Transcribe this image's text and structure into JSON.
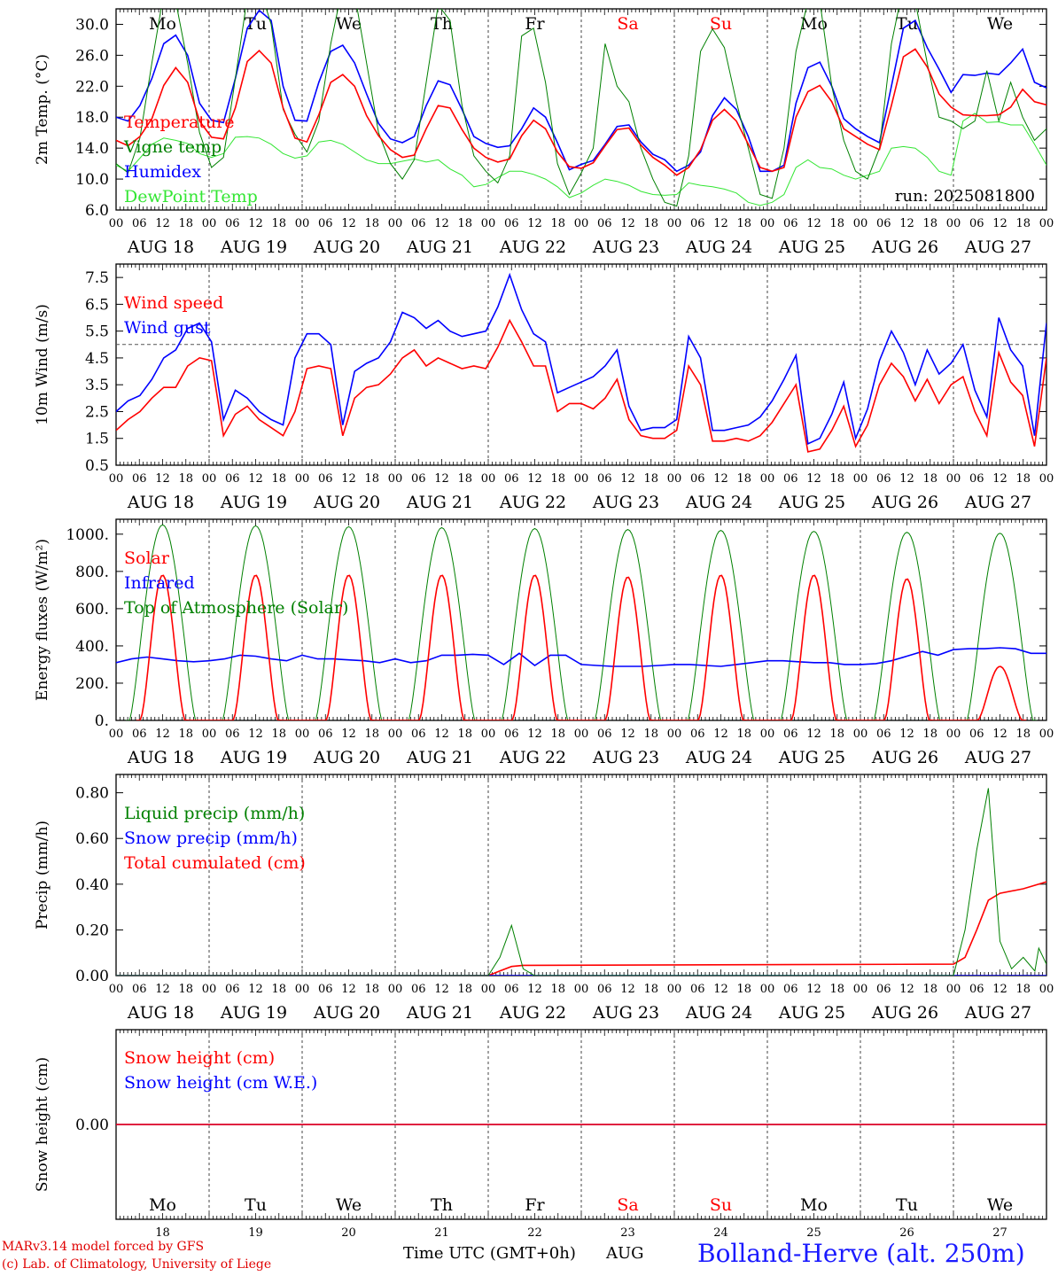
{
  "footer": {
    "credit_line1": "MARv3.14 model forced by GFS",
    "credit_line2": "(c) Lab. of Climatology, University of Liege",
    "time_label": "Time UTC (GMT+0h)",
    "month_label": "AUG",
    "location": "Bolland-Herve (alt. 250m)"
  },
  "colors": {
    "red": "#ff0000",
    "dark_green": "#008000",
    "light_green": "#33e633",
    "blue": "#0000ff",
    "weekend": "#ff0000"
  },
  "chart_data": [
    {
      "type": "line",
      "ylabel": "2m Temp. (°C)",
      "ylim": [
        6,
        32
      ],
      "yticks": [
        "6.0",
        "10.0",
        "14.0",
        "18.0",
        "22.0",
        "26.0",
        "30.0"
      ],
      "annotation": "run: 2025081800",
      "day_labels": [
        "Mo",
        "Tu",
        "We",
        "Th",
        "Fr",
        "Sa",
        "Su",
        "Mo",
        "Tu",
        "We"
      ],
      "x_hours": "0-240 step 6",
      "x_tick_labels": [
        "00",
        "06",
        "12",
        "18"
      ],
      "x_day_labels": [
        "AUG 18",
        "AUG 19",
        "AUG 20",
        "AUG 21",
        "AUG 22",
        "AUG 23",
        "AUG 24",
        "AUG 25",
        "AUG 26",
        "AUG 27"
      ],
      "series": [
        {
          "name": "Temperature",
          "color": "#ff0000",
          "values": [
            15,
            14.3,
            15.5,
            17.8,
            22.1,
            24.4,
            22.5,
            17.5,
            15.4,
            15.2,
            19.2,
            25.2,
            26.6,
            25,
            19.2,
            15.3,
            14.8,
            18.3,
            22.5,
            23.5,
            22,
            18.2,
            15.6,
            13.8,
            12.8,
            13.1,
            16.5,
            19.5,
            19.2,
            16.4,
            14,
            12.8,
            12.2,
            12.6,
            15.6,
            17.6,
            16.5,
            13.5,
            11.6,
            11.4,
            12.1,
            14.3,
            16.4,
            16.6,
            14.4,
            12.8,
            11.8,
            10.5,
            11.5,
            13.8,
            17.6,
            19,
            17.5,
            14.5,
            11.5,
            11,
            11.5,
            18,
            21.3,
            22.1,
            20,
            16.5,
            15.5,
            14.5,
            13.8,
            19.5,
            25.8,
            26.8,
            24.5,
            21,
            19.3,
            18.3,
            18.2,
            18.2,
            18.3,
            19.3,
            21.6,
            20,
            19.6
          ]
        },
        {
          "name": "Vigne temp",
          "color": "#008000",
          "values": [
            12,
            10.8,
            15.3,
            25,
            34,
            33,
            25,
            16,
            11.5,
            12.8,
            23,
            33.5,
            35,
            30,
            19,
            15.8,
            13.5,
            17.5,
            27.5,
            35,
            34,
            25,
            16,
            12,
            10,
            12.5,
            22.5,
            32.5,
            30.5,
            19.5,
            13,
            11,
            9.5,
            13,
            28.5,
            29.5,
            22.5,
            12,
            8,
            10.8,
            14,
            27.5,
            22,
            20,
            14,
            10,
            7,
            6.5,
            13,
            26.5,
            29.4,
            27,
            20,
            14,
            8,
            7.5,
            14,
            26.5,
            33,
            33,
            22,
            15,
            11,
            10,
            14,
            27.5,
            35,
            33,
            25,
            18,
            17.5,
            16.5,
            17.5,
            24,
            17.5,
            22.5,
            18,
            15,
            16.5
          ]
        },
        {
          "name": "Humidex",
          "color": "#0000ff",
          "values": [
            18,
            17.5,
            19.5,
            23,
            27.5,
            28.6,
            26,
            19.8,
            17.6,
            17.3,
            23,
            29.5,
            31.8,
            30.5,
            22,
            17.6,
            17.5,
            22.5,
            26.5,
            27.3,
            25,
            21,
            17.2,
            15.2,
            14.7,
            15.5,
            19.5,
            22.7,
            22.2,
            19,
            15.5,
            14.6,
            14.1,
            14.3,
            16.5,
            19.2,
            18,
            14.7,
            11.2,
            11.9,
            12.4,
            14.5,
            16.8,
            17,
            14.8,
            13.2,
            12.5,
            11,
            11.8,
            13.5,
            18.2,
            20.5,
            19,
            15.5,
            11,
            11,
            11.8,
            19.8,
            24.4,
            25.1,
            22,
            17.8,
            16.5,
            15.5,
            14.7,
            22,
            29.5,
            30.5,
            27,
            24.2,
            21.2,
            23.5,
            23.4,
            23.7,
            23.5,
            25,
            26.8,
            22.5,
            21.8
          ]
        },
        {
          "name": "DewPoint Temp",
          "color": "#33e633",
          "values": [
            11.8,
            11,
            12.7,
            14.5,
            15.3,
            15,
            14.6,
            13.3,
            12.8,
            13.3,
            15.4,
            15.5,
            15.3,
            14.5,
            13.3,
            12.7,
            13,
            14.8,
            15,
            14.5,
            13.5,
            12.5,
            12,
            12,
            12.3,
            12.6,
            12.2,
            12.5,
            11.3,
            10.5,
            9,
            9.3,
            10.2,
            11,
            11,
            10.6,
            10,
            9,
            7.6,
            8.2,
            9.2,
            10,
            9.7,
            9.2,
            8.4,
            8,
            7.9,
            8,
            9.5,
            9.2,
            9,
            8.7,
            8.2,
            7,
            6.6,
            7,
            8,
            11.5,
            12.5,
            11.5,
            11.3,
            10.5,
            10,
            10.5,
            11,
            14,
            14.2,
            14,
            12.8,
            11,
            10.5,
            17.5,
            18.5,
            17.3,
            17.4,
            17,
            17,
            14.5,
            11.8
          ]
        }
      ]
    },
    {
      "type": "line",
      "ylabel": "10m Wind (m/s)",
      "ylim": [
        0.5,
        8
      ],
      "yticks": [
        "0.5",
        "1.5",
        "2.5",
        "3.5",
        "4.5",
        "5.5",
        "6.5",
        "7.5"
      ],
      "reference_line": 5,
      "x_tick_labels": [
        "00",
        "06",
        "12",
        "18"
      ],
      "x_day_labels": [
        "AUG 18",
        "AUG 19",
        "AUG 20",
        "AUG 21",
        "AUG 22",
        "AUG 23",
        "AUG 24",
        "AUG 25",
        "AUG 26",
        "AUG 27"
      ],
      "series": [
        {
          "name": "Wind speed",
          "color": "#ff0000",
          "values": [
            1.8,
            2.2,
            2.5,
            3,
            3.4,
            3.4,
            4.2,
            4.5,
            4.4,
            1.6,
            2.4,
            2.7,
            2.2,
            1.9,
            1.6,
            2.5,
            4.1,
            4.2,
            4.1,
            1.6,
            3.0,
            3.4,
            3.5,
            3.9,
            4.5,
            4.8,
            4.2,
            4.5,
            4.3,
            4.1,
            4.2,
            4.1,
            4.9,
            5.9,
            5.1,
            4.2,
            4.2,
            2.5,
            2.8,
            2.8,
            2.6,
            3.0,
            3.7,
            2.2,
            1.6,
            1.5,
            1.5,
            1.8,
            4.2,
            3.5,
            1.4,
            1.4,
            1.5,
            1.4,
            1.6,
            2.1,
            2.8,
            3.5,
            1.0,
            1.1,
            1.8,
            2.7,
            1.2,
            2.0,
            3.5,
            4.3,
            3.8,
            2.9,
            3.7,
            2.8,
            3.5,
            3.8,
            2.5,
            1.6,
            4.7,
            3.6,
            3.1,
            1.2,
            4.5
          ]
        },
        {
          "name": "Wind gust",
          "color": "#0000ff",
          "values": [
            2.5,
            2.9,
            3.1,
            3.7,
            4.5,
            4.8,
            5.6,
            5.8,
            5.1,
            2.2,
            3.3,
            3.0,
            2.5,
            2.2,
            2.0,
            4.5,
            5.4,
            5.4,
            5.0,
            2.0,
            4.0,
            4.3,
            4.5,
            5.1,
            6.2,
            6.0,
            5.6,
            5.9,
            5.5,
            5.3,
            5.4,
            5.5,
            6.4,
            7.6,
            6.3,
            5.4,
            5.1,
            3.2,
            3.4,
            3.6,
            3.8,
            4.2,
            4.8,
            2.7,
            1.8,
            1.9,
            1.9,
            2.2,
            5.3,
            4.5,
            1.8,
            1.8,
            1.9,
            2.0,
            2.3,
            2.9,
            3.7,
            4.6,
            1.3,
            1.5,
            2.4,
            3.6,
            1.5,
            2.6,
            4.4,
            5.5,
            4.7,
            3.5,
            4.8,
            3.9,
            4.3,
            5.0,
            3.3,
            2.3,
            6.0,
            4.8,
            4.2,
            1.6,
            5.8
          ]
        }
      ]
    },
    {
      "type": "line",
      "ylabel": "Energy fluxes (W/m²)",
      "ylim": [
        0,
        1080
      ],
      "yticks": [
        "0.",
        "200.",
        "400.",
        "600.",
        "800.",
        "1000."
      ],
      "x_tick_labels": [
        "00",
        "06",
        "12",
        "18"
      ],
      "x_day_labels": [
        "AUG 18",
        "AUG 19",
        "AUG 20",
        "AUG 21",
        "AUG 22",
        "AUG 23",
        "AUG 24",
        "AUG 25",
        "AUG 26",
        "AUG 27"
      ],
      "series": [
        {
          "name": "Solar",
          "color": "#ff0000",
          "description": "daily peaks",
          "peaks": [
            780,
            780,
            780,
            780,
            780,
            770,
            780,
            780,
            760,
            290
          ]
        },
        {
          "name": "Infrared",
          "color": "#0000ff",
          "values": [
            310,
            330,
            340,
            330,
            320,
            315,
            320,
            330,
            350,
            345,
            330,
            320,
            350,
            330,
            330,
            325,
            320,
            310,
            330,
            310,
            320,
            350,
            350,
            355,
            350,
            300,
            360,
            295,
            350,
            350,
            300,
            295,
            290,
            290,
            290,
            295,
            300,
            300,
            295,
            290,
            300,
            310,
            320,
            320,
            315,
            310,
            310,
            300,
            300,
            305,
            320,
            345,
            370,
            350,
            380,
            385,
            385,
            390,
            385,
            360,
            360
          ]
        },
        {
          "name": "Top of Atmosphere (Solar)",
          "color": "#008000",
          "description": "daily peaks",
          "peaks": [
            1050,
            1045,
            1040,
            1035,
            1030,
            1025,
            1020,
            1015,
            1010,
            1005
          ]
        }
      ]
    },
    {
      "type": "line",
      "ylabel": "Precip (mm/h)",
      "ylim": [
        0,
        0.88
      ],
      "yticks": [
        "0.00",
        "0.20",
        "0.40",
        "0.60",
        "0.80"
      ],
      "x_tick_labels": [
        "00",
        "06",
        "12",
        "18"
      ],
      "x_day_labels": [
        "AUG 18",
        "AUG 19",
        "AUG 20",
        "AUG 21",
        "AUG 22",
        "AUG 23",
        "AUG 24",
        "AUG 25",
        "AUG 26",
        "AUG 27"
      ],
      "series": [
        {
          "name": "Liquid precip (mm/h)",
          "color": "#008000",
          "points": [
            [
              0,
              0
            ],
            [
              96,
              0
            ],
            [
              99,
              0.08
            ],
            [
              102,
              0.22
            ],
            [
              105,
              0.03
            ],
            [
              108,
              0
            ],
            [
              216,
              0
            ],
            [
              219,
              0.2
            ],
            [
              222,
              0.55
            ],
            [
              225,
              0.82
            ],
            [
              228,
              0.15
            ],
            [
              231,
              0.03
            ],
            [
              234,
              0.08
            ],
            [
              237,
              0.02
            ],
            [
              238,
              0.12
            ],
            [
              240,
              0.05
            ]
          ]
        },
        {
          "name": "Snow precip (mm/h)",
          "color": "#0000ff",
          "points": [
            [
              0,
              0
            ],
            [
              240,
              0
            ]
          ]
        },
        {
          "name": "Total cumulated (cm)",
          "color": "#ff0000",
          "points": [
            [
              0,
              0
            ],
            [
              96,
              0
            ],
            [
              99,
              0.02
            ],
            [
              102,
              0.04
            ],
            [
              105,
              0.045
            ],
            [
              216,
              0.05
            ],
            [
              219,
              0.08
            ],
            [
              222,
              0.2
            ],
            [
              225,
              0.33
            ],
            [
              228,
              0.36
            ],
            [
              234,
              0.38
            ],
            [
              240,
              0.41
            ]
          ]
        }
      ]
    },
    {
      "type": "line",
      "ylabel": "Snow height (cm)",
      "yticks": [
        "0.00"
      ],
      "day_labels": [
        "Mo",
        "Tu",
        "We",
        "Th",
        "Fr",
        "Sa",
        "Su",
        "Mo",
        "Tu",
        "We"
      ],
      "date_numbers": [
        "18",
        "19",
        "20",
        "21",
        "22",
        "23",
        "24",
        "25",
        "26",
        "27"
      ],
      "series": [
        {
          "name": "Snow height (cm)",
          "color": "#ff0000",
          "values": [
            0,
            0
          ]
        },
        {
          "name": "Snow height (cm W.E.)",
          "color": "#0000ff",
          "values": [
            0,
            0
          ]
        }
      ]
    }
  ]
}
